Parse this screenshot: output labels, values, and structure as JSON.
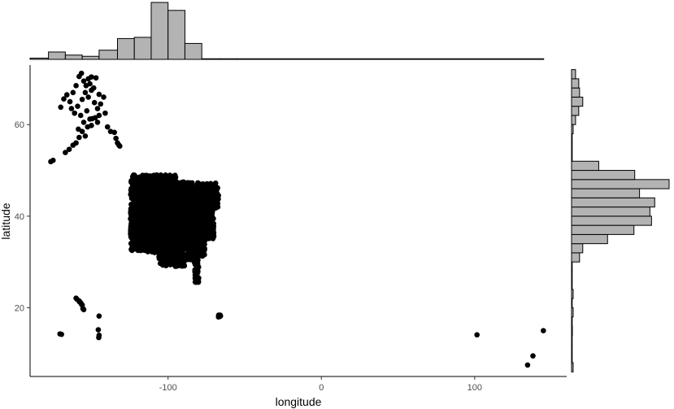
{
  "chart_data": {
    "type": "scatter",
    "subtype": "scatter-with-marginal-histograms",
    "title": "",
    "xlabel": "longitude",
    "ylabel": "latitude",
    "xlim": [
      -190,
      160
    ],
    "ylim": [
      5,
      73
    ],
    "x_ticks": [
      -100,
      0,
      100
    ],
    "x_tick_labels": [
      "-100",
      "0",
      "100"
    ],
    "y_ticks": [
      20,
      40,
      60
    ],
    "y_tick_labels": [
      "20",
      "40",
      "60"
    ],
    "grid": false,
    "legend": "none",
    "colors": {
      "points": "#000000",
      "histogram_fill": "#b3b3b3",
      "histogram_stroke": "#000000",
      "axis": "#000000"
    },
    "points": {
      "alaska": [
        [
          -166.0,
          66.5
        ],
        [
          -164.0,
          65.0
        ],
        [
          -162.0,
          67.0
        ],
        [
          -160.0,
          68.5
        ],
        [
          -158.0,
          70.5
        ],
        [
          -156.5,
          71.2
        ],
        [
          -155.0,
          69.5
        ],
        [
          -152.0,
          70.0
        ],
        [
          -150.0,
          70.4
        ],
        [
          -147.0,
          70.2
        ],
        [
          -163.0,
          63.5
        ],
        [
          -161.0,
          62.5
        ],
        [
          -159.0,
          64.0
        ],
        [
          -157.0,
          62.0
        ],
        [
          -155.0,
          60.5
        ],
        [
          -153.0,
          63.0
        ],
        [
          -151.0,
          61.2
        ],
        [
          -149.5,
          61.3
        ],
        [
          -148.0,
          64.8
        ],
        [
          -147.5,
          61.5
        ],
        [
          -146.0,
          63.5
        ],
        [
          -145.0,
          62.0
        ],
        [
          -144.0,
          64.5
        ],
        [
          -142.0,
          66.0
        ],
        [
          -141.0,
          62.5
        ],
        [
          -152.0,
          66.0
        ],
        [
          -154.0,
          67.0
        ],
        [
          -156.0,
          65.5
        ],
        [
          -150.0,
          67.5
        ],
        [
          -148.5,
          68.0
        ],
        [
          -167.0,
          53.9
        ],
        [
          -164.5,
          54.6
        ],
        [
          -162.0,
          55.5
        ],
        [
          -160.0,
          56.0
        ],
        [
          -158.0,
          57.2
        ],
        [
          -156.0,
          58.5
        ],
        [
          -154.0,
          57.5
        ],
        [
          -152.5,
          59.5
        ],
        [
          -150.0,
          59.8
        ],
        [
          -146.0,
          60.5
        ],
        [
          -139.5,
          59.5
        ],
        [
          -137.5,
          58.5
        ],
        [
          -135.0,
          58.3
        ],
        [
          -134.0,
          57.0
        ],
        [
          -133.0,
          56.0
        ],
        [
          -132.0,
          55.5
        ],
        [
          -131.5,
          55.3
        ],
        [
          -168.0,
          65.6
        ],
        [
          -170.0,
          63.8
        ],
        [
          -176.5,
          51.9
        ],
        [
          -175.0,
          52.2
        ],
        [
          -145.0,
          66.6
        ],
        [
          -151.0,
          68.9
        ],
        [
          -158.5,
          59.0
        ],
        [
          -153.5,
          68.5
        ]
      ],
      "contiguous": {
        "x_range": [
          -124.5,
          -67.5
        ],
        "y_range": [
          25.5,
          49.0
        ],
        "samples": [
          [
            -122.4,
            37.8
          ],
          [
            -118.2,
            34.0
          ],
          [
            -117.1,
            32.7
          ],
          [
            -122.7,
            45.5
          ],
          [
            -122.3,
            47.6
          ],
          [
            -112.1,
            33.4
          ],
          [
            -104.9,
            39.7
          ],
          [
            -111.9,
            40.8
          ],
          [
            -97.5,
            35.5
          ],
          [
            -95.4,
            29.8
          ],
          [
            -96.8,
            32.8
          ],
          [
            -98.5,
            29.4
          ],
          [
            -90.2,
            38.6
          ],
          [
            -87.6,
            41.9
          ],
          [
            -83.0,
            42.3
          ],
          [
            -84.4,
            33.7
          ],
          [
            -81.7,
            30.3
          ],
          [
            -80.2,
            25.8
          ],
          [
            -82.5,
            27.9
          ],
          [
            -77.0,
            38.9
          ],
          [
            -74.0,
            40.7
          ],
          [
            -71.1,
            42.4
          ],
          [
            -75.2,
            39.9
          ],
          [
            -79.9,
            40.4
          ],
          [
            -93.3,
            45.0
          ],
          [
            -86.8,
            36.2
          ],
          [
            -90.1,
            29.9
          ],
          [
            -106.6,
            35.1
          ],
          [
            -115.1,
            36.2
          ],
          [
            -100.8,
            46.8
          ],
          [
            -68.8,
            44.8
          ],
          [
            -70.3,
            43.7
          ],
          [
            -81.4,
            28.5
          ],
          [
            -80.8,
            35.2
          ],
          [
            -88.0,
            43.0
          ]
        ]
      },
      "hawaii": [
        [
          -160.0,
          22.1
        ],
        [
          -159.5,
          21.9
        ],
        [
          -158.0,
          21.5
        ],
        [
          -157.8,
          21.3
        ],
        [
          -157.0,
          21.1
        ],
        [
          -156.5,
          20.8
        ],
        [
          -156.0,
          20.6
        ],
        [
          -155.5,
          19.8
        ],
        [
          -155.0,
          19.6
        ]
      ],
      "puerto_rico": [
        [
          -67.0,
          18.4
        ],
        [
          -66.5,
          18.3
        ],
        [
          -66.0,
          18.4
        ],
        [
          -65.8,
          18.2
        ],
        [
          -66.2,
          18.1
        ],
        [
          -67.1,
          18.0
        ]
      ],
      "pacific_other": [
        [
          -170.5,
          14.3
        ],
        [
          -169.5,
          14.2
        ],
        [
          -145.0,
          18.2
        ],
        [
          -145.5,
          15.2
        ],
        [
          -145.0,
          14.0
        ],
        [
          -145.2,
          13.5
        ],
        [
          101.5,
          14.1
        ],
        [
          144.8,
          15.0
        ],
        [
          138.0,
          9.5
        ],
        [
          134.5,
          7.5
        ]
      ]
    },
    "x_histogram": {
      "bin_edges": [
        -190,
        -178,
        -167,
        -156,
        -145,
        -133,
        -122,
        -111,
        -100,
        -89,
        -78,
        -66,
        -55,
        145
      ],
      "counts": [
        2,
        12,
        7,
        5,
        15,
        34,
        36,
        93,
        80,
        26,
        1,
        1,
        1
      ]
    },
    "y_histogram": {
      "bin_edges": [
        6,
        8,
        10,
        12,
        14,
        16,
        18,
        20,
        22,
        24,
        26,
        28,
        30,
        32,
        34,
        36,
        38,
        40,
        42,
        44,
        46,
        48,
        50,
        52,
        54,
        56,
        58,
        60,
        62,
        64,
        66,
        68,
        70,
        72
      ],
      "counts": [
        2,
        0,
        0,
        0,
        1,
        0,
        2,
        0,
        2,
        0,
        0,
        0,
        10,
        14,
        45,
        78,
        100,
        98,
        104,
        85,
        122,
        79,
        34,
        0,
        0,
        0,
        2,
        5,
        9,
        14,
        10,
        9,
        5
      ]
    }
  }
}
